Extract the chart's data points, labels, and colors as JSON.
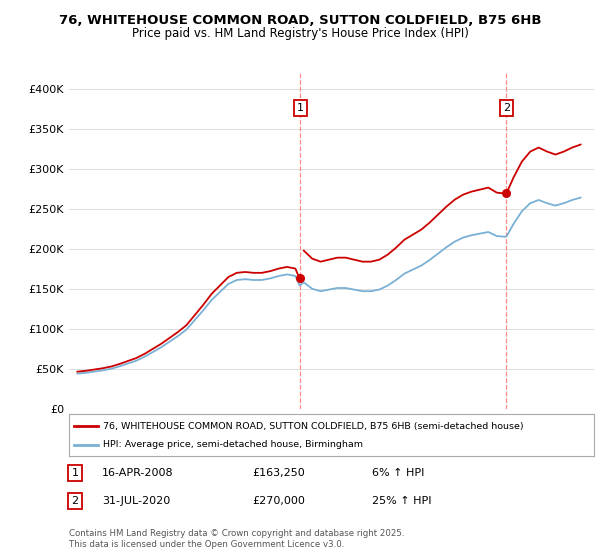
{
  "title_line1": "76, WHITEHOUSE COMMON ROAD, SUTTON COLDFIELD, B75 6HB",
  "title_line2": "Price paid vs. HM Land Registry's House Price Index (HPI)",
  "legend_label1": "76, WHITEHOUSE COMMON ROAD, SUTTON COLDFIELD, B75 6HB (semi-detached house)",
  "legend_label2": "HPI: Average price, semi-detached house, Birmingham",
  "annotation1_label": "1",
  "annotation1_date": "16-APR-2008",
  "annotation1_price": "£163,250",
  "annotation1_hpi": "6% ↑ HPI",
  "annotation2_label": "2",
  "annotation2_date": "31-JUL-2020",
  "annotation2_price": "£270,000",
  "annotation2_hpi": "25% ↑ HPI",
  "footer": "Contains HM Land Registry data © Crown copyright and database right 2025.\nThis data is licensed under the Open Government Licence v3.0.",
  "sale1_year": 2008.29,
  "sale1_price": 163250,
  "sale2_year": 2020.58,
  "sale2_price": 270000,
  "line_color_red": "#cc0000",
  "line_color_blue": "#7ab0d4",
  "vline_color": "#ff8888",
  "bg_color": "#ffffff",
  "grid_color": "#dddddd",
  "ylim": [
    0,
    420000
  ],
  "xlim_start": 1994.5,
  "xlim_end": 2025.8,
  "years_hpi": [
    1995,
    1995.5,
    1996,
    1996.5,
    1997,
    1997.5,
    1998,
    1998.5,
    1999,
    1999.5,
    2000,
    2000.5,
    2001,
    2001.5,
    2002,
    2002.5,
    2003,
    2003.5,
    2004,
    2004.5,
    2005,
    2005.5,
    2006,
    2006.5,
    2007,
    2007.5,
    2008,
    2008.25,
    2008.5,
    2009,
    2009.5,
    2010,
    2010.5,
    2011,
    2011.5,
    2012,
    2012.5,
    2013,
    2013.5,
    2014,
    2014.5,
    2015,
    2015.5,
    2016,
    2016.5,
    2017,
    2017.5,
    2018,
    2018.5,
    2019,
    2019.5,
    2020,
    2020.5,
    2020.6,
    2021,
    2021.5,
    2022,
    2022.5,
    2023,
    2023.5,
    2024,
    2024.5,
    2025
  ],
  "hpi_values": [
    44000,
    45000,
    46500,
    48000,
    50000,
    53000,
    56500,
    60000,
    65000,
    71000,
    77000,
    84000,
    91000,
    99000,
    111000,
    123000,
    136000,
    146000,
    156000,
    161000,
    162000,
    161000,
    161000,
    163000,
    166000,
    168000,
    166000,
    154000,
    158000,
    150000,
    147000,
    149000,
    151000,
    151000,
    149000,
    147000,
    147000,
    149000,
    154000,
    161000,
    169000,
    174000,
    179000,
    186000,
    194000,
    202000,
    209000,
    214000,
    217000,
    219000,
    221000,
    216000,
    215000,
    216000,
    231000,
    247000,
    257000,
    261000,
    257000,
    254000,
    257000,
    261000,
    264000
  ]
}
